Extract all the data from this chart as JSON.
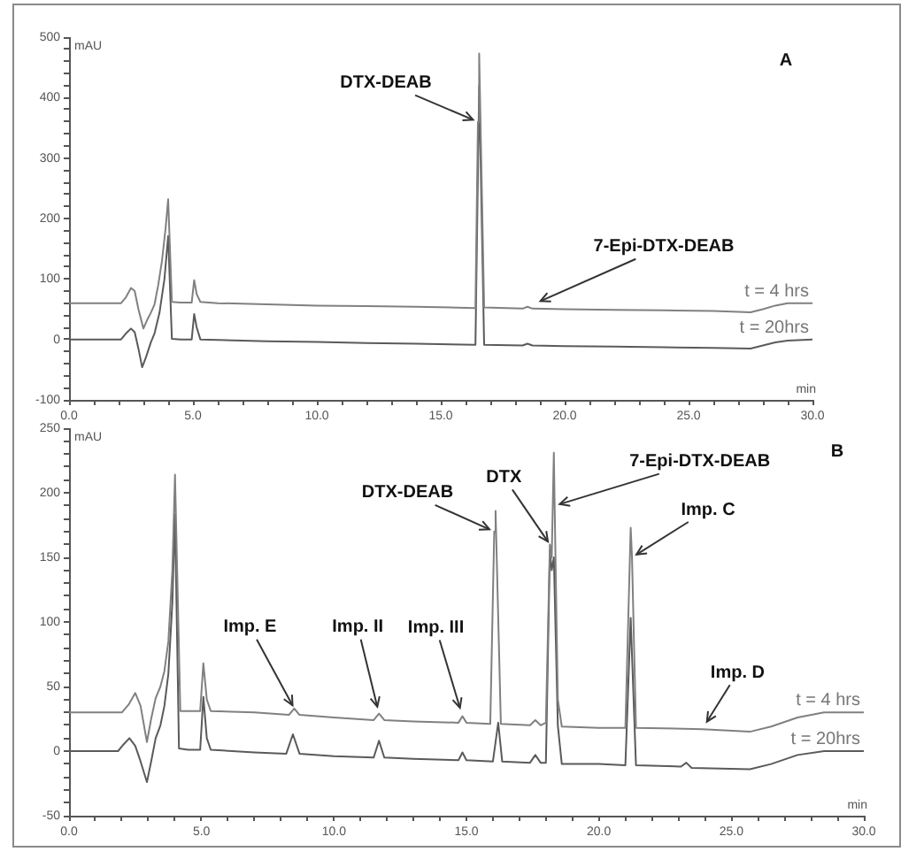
{
  "chart_data": [
    {
      "type": "line",
      "title": "A",
      "xlabel": "min",
      "ylabel": "mAU",
      "marker": "none",
      "line_style": "solid",
      "xlim": [
        0,
        30
      ],
      "ylim": [
        -100,
        500
      ],
      "xticks": [
        {
          "value": 0,
          "label": "0.0"
        },
        {
          "value": 1,
          "label": null
        },
        {
          "value": 2,
          "label": null
        },
        {
          "value": 3,
          "label": null
        },
        {
          "value": 4,
          "label": null
        },
        {
          "value": 5,
          "label": "5.0"
        },
        {
          "value": 6,
          "label": null
        },
        {
          "value": 7,
          "label": null
        },
        {
          "value": 8,
          "label": null
        },
        {
          "value": 9,
          "label": null
        },
        {
          "value": 10,
          "label": "10.0"
        },
        {
          "value": 11,
          "label": null
        },
        {
          "value": 12,
          "label": null
        },
        {
          "value": 13,
          "label": null
        },
        {
          "value": 14,
          "label": null
        },
        {
          "value": 15,
          "label": "15.0"
        },
        {
          "value": 16,
          "label": null
        },
        {
          "value": 17,
          "label": null
        },
        {
          "value": 18,
          "label": null
        },
        {
          "value": 19,
          "label": null
        },
        {
          "value": 20,
          "label": "20.0"
        },
        {
          "value": 21,
          "label": null
        },
        {
          "value": 22,
          "label": null
        },
        {
          "value": 23,
          "label": null
        },
        {
          "value": 24,
          "label": null
        },
        {
          "value": 25,
          "label": "25.0"
        },
        {
          "value": 26,
          "label": null
        },
        {
          "value": 27,
          "label": null
        },
        {
          "value": 28,
          "label": null
        },
        {
          "value": 29,
          "label": null
        },
        {
          "value": 30,
          "label": "30.0"
        }
      ],
      "yticks": [
        -100,
        {
          "value": -80,
          "label": null
        },
        {
          "value": -60,
          "label": null
        },
        {
          "value": -40,
          "label": null
        },
        {
          "value": -20,
          "label": null
        },
        0,
        {
          "value": 20,
          "label": null
        },
        {
          "value": 40,
          "label": null
        },
        {
          "value": 60,
          "label": null
        },
        {
          "value": 80,
          "label": null
        },
        100,
        {
          "value": 120,
          "label": null
        },
        {
          "value": 140,
          "label": null
        },
        {
          "value": 160,
          "label": null
        },
        {
          "value": 180,
          "label": null
        },
        200,
        {
          "value": 220,
          "label": null
        },
        {
          "value": 240,
          "label": null
        },
        {
          "value": 260,
          "label": null
        },
        {
          "value": 280,
          "label": null
        },
        300,
        {
          "value": 320,
          "label": null
        },
        {
          "value": 340,
          "label": null
        },
        {
          "value": 360,
          "label": null
        },
        {
          "value": 380,
          "label": null
        },
        400,
        {
          "value": 420,
          "label": null
        },
        {
          "value": 440,
          "label": null
        },
        {
          "value": 460,
          "label": null
        },
        {
          "value": 480,
          "label": null
        },
        500
      ],
      "series": [
        {
          "name": "t = 4 hrs",
          "color": "#808080",
          "x": [
            0,
            2.1,
            2.3,
            2.5,
            2.65,
            2.8,
            3.0,
            3.15,
            3.3,
            3.45,
            3.6,
            3.75,
            3.9,
            4.0,
            4.15,
            4.5,
            4.95,
            5.05,
            5.15,
            5.3,
            6,
            8,
            10,
            12,
            14,
            16.4,
            16.5,
            16.55,
            16.75,
            18.3,
            18.5,
            18.7,
            20,
            22,
            24,
            26,
            27.5,
            28,
            28.5,
            29,
            30
          ],
          "values": [
            60,
            60,
            70,
            85,
            80,
            50,
            18,
            32,
            44,
            58,
            90,
            130,
            185,
            232,
            62,
            61,
            61,
            98,
            75,
            62,
            60,
            58,
            56,
            55,
            54,
            52,
            360,
            473,
            53,
            51,
            54,
            51,
            50,
            49,
            48,
            47,
            45,
            50,
            56,
            60,
            60
          ]
        },
        {
          "name": "t = 20hrs",
          "color": "#5a5a5a",
          "x": [
            0,
            2.1,
            2.3,
            2.5,
            2.65,
            2.8,
            2.95,
            3.1,
            3.3,
            3.45,
            3.65,
            3.85,
            4.0,
            4.15,
            4.5,
            4.95,
            5.05,
            5.15,
            5.3,
            6,
            8,
            10,
            12,
            14,
            16.4,
            16.55,
            16.75,
            18.3,
            18.5,
            18.7,
            20,
            22,
            24,
            26,
            27.5,
            28,
            28.5,
            29,
            30
          ],
          "values": [
            0,
            0,
            10,
            18,
            12,
            -15,
            -46,
            -30,
            -5,
            10,
            44,
            100,
            171,
            1,
            0,
            0,
            42,
            20,
            0,
            -1,
            -3,
            -4,
            -6,
            -7,
            -9,
            420,
            -9,
            -10,
            -7,
            -10,
            -11,
            -12,
            -13,
            -14,
            -15,
            -10,
            -5,
            -2,
            0
          ]
        }
      ],
      "annotations": [
        {
          "text": "DTX-DEAB",
          "x": 16.5,
          "y": 360
        },
        {
          "text": "7-Epi-DTX-DEAB",
          "x": 18.5,
          "y": 54
        }
      ]
    },
    {
      "type": "line",
      "title": "B",
      "xlabel": "min",
      "ylabel": "mAU",
      "marker": "none",
      "line_style": "solid",
      "xlim": [
        0,
        30
      ],
      "ylim": [
        -50,
        250
      ],
      "xticks": [
        {
          "value": 0,
          "label": "0.0"
        },
        {
          "value": 1,
          "label": null
        },
        {
          "value": 2,
          "label": null
        },
        {
          "value": 3,
          "label": null
        },
        {
          "value": 4,
          "label": null
        },
        {
          "value": 5,
          "label": "5.0"
        },
        {
          "value": 6,
          "label": null
        },
        {
          "value": 7,
          "label": null
        },
        {
          "value": 8,
          "label": null
        },
        {
          "value": 9,
          "label": null
        },
        {
          "value": 10,
          "label": "10.0"
        },
        {
          "value": 11,
          "label": null
        },
        {
          "value": 12,
          "label": null
        },
        {
          "value": 13,
          "label": null
        },
        {
          "value": 14,
          "label": null
        },
        {
          "value": 15,
          "label": "15.0"
        },
        {
          "value": 16,
          "label": null
        },
        {
          "value": 17,
          "label": null
        },
        {
          "value": 18,
          "label": null
        },
        {
          "value": 19,
          "label": null
        },
        {
          "value": 20,
          "label": "20.0"
        },
        {
          "value": 21,
          "label": null
        },
        {
          "value": 22,
          "label": null
        },
        {
          "value": 23,
          "label": null
        },
        {
          "value": 24,
          "label": null
        },
        {
          "value": 25,
          "label": "25.0"
        },
        {
          "value": 26,
          "label": null
        },
        {
          "value": 27,
          "label": null
        },
        {
          "value": 28,
          "label": null
        },
        {
          "value": 29,
          "label": null
        },
        {
          "value": 30,
          "label": "30.0"
        }
      ],
      "yticks": [
        -50,
        {
          "value": -40,
          "label": null
        },
        {
          "value": -30,
          "label": null
        },
        {
          "value": -20,
          "label": null
        },
        {
          "value": -10,
          "label": null
        },
        0,
        {
          "value": 10,
          "label": null
        },
        {
          "value": 20,
          "label": null
        },
        {
          "value": 30,
          "label": null
        },
        {
          "value": 40,
          "label": null
        },
        50,
        {
          "value": 60,
          "label": null
        },
        {
          "value": 70,
          "label": null
        },
        {
          "value": 80,
          "label": null
        },
        {
          "value": 90,
          "label": null
        },
        100,
        {
          "value": 110,
          "label": null
        },
        {
          "value": 120,
          "label": null
        },
        {
          "value": 130,
          "label": null
        },
        {
          "value": 140,
          "label": null
        },
        150,
        {
          "value": 160,
          "label": null
        },
        {
          "value": 170,
          "label": null
        },
        {
          "value": 180,
          "label": null
        },
        {
          "value": 190,
          "label": null
        },
        200,
        {
          "value": 210,
          "label": null
        },
        {
          "value": 220,
          "label": null
        },
        {
          "value": 230,
          "label": null
        },
        {
          "value": 240,
          "label": null
        },
        250
      ],
      "series": [
        {
          "name": "t = 4 hrs",
          "color": "#808080",
          "x": [
            0,
            2.0,
            2.25,
            2.5,
            2.7,
            2.94,
            3.1,
            3.27,
            3.45,
            3.6,
            3.75,
            3.9,
            4.0,
            4.2,
            4.5,
            4.95,
            5.07,
            5.2,
            5.35,
            7,
            8.3,
            8.5,
            8.7,
            10,
            11.5,
            11.7,
            11.9,
            13,
            14.7,
            14.85,
            15,
            15.9,
            16.05,
            16.1,
            16.3,
            17.4,
            17.6,
            17.8,
            18.0,
            18.15,
            18.22,
            18.3,
            18.33,
            18.45,
            18.6,
            20,
            21.0,
            21.2,
            21.25,
            21.4,
            23.9,
            25.7,
            26.5,
            27.5,
            28.5,
            30
          ],
          "values": [
            30,
            30,
            36,
            45,
            35,
            7,
            25,
            41,
            50,
            62,
            85,
            140,
            214,
            31,
            31,
            31,
            68,
            40,
            31,
            30,
            28,
            33,
            28,
            26,
            24,
            29,
            24,
            23,
            22,
            27,
            22,
            21,
            170,
            186,
            21,
            20,
            24,
            20,
            22,
            160,
            150,
            231,
            190,
            40,
            19,
            18,
            18,
            173,
            150,
            18,
            17,
            15,
            19,
            26,
            30,
            30
          ]
        },
        {
          "name": "t = 20hrs",
          "color": "#5a5a5a",
          "x": [
            0,
            1.85,
            2.05,
            2.28,
            2.5,
            2.7,
            2.94,
            3.1,
            3.27,
            3.45,
            3.6,
            3.75,
            3.9,
            4.0,
            4.15,
            4.5,
            4.95,
            5.07,
            5.2,
            5.35,
            7,
            8.2,
            8.45,
            8.7,
            10,
            11.5,
            11.7,
            11.9,
            13,
            14.7,
            14.85,
            15,
            16.0,
            16.2,
            16.35,
            17.4,
            17.6,
            17.8,
            18.0,
            18.15,
            18.22,
            18.3,
            18.45,
            18.6,
            20,
            21.0,
            21.2,
            21.4,
            23.1,
            23.3,
            23.5,
            25.7,
            26.5,
            27.5,
            28.5,
            30
          ],
          "values": [
            0,
            0,
            5,
            10,
            4,
            -8,
            -24,
            -8,
            10,
            20,
            35,
            60,
            115,
            183,
            2,
            1,
            1,
            42,
            10,
            1,
            -1,
            -2,
            13,
            -2,
            -4,
            -5,
            8,
            -5,
            -6,
            -7,
            -1,
            -7,
            -8,
            22,
            -8,
            -9,
            -3,
            -9,
            -9,
            155,
            140,
            150,
            20,
            -10,
            -10,
            -11,
            103,
            -11,
            -12,
            -9,
            -13,
            -14,
            -10,
            -3,
            0,
            0
          ]
        }
      ],
      "annotations": [
        {
          "text": "DTX-DEAB",
          "x": 16.05,
          "y": 170
        },
        {
          "text": "DTX",
          "x": 18.15,
          "y": 160
        },
        {
          "text": "7-Epi-DTX-DEAB",
          "x": 18.33,
          "y": 190
        },
        {
          "text": "Imp. C",
          "x": 21.25,
          "y": 150
        },
        {
          "text": "Imp. E",
          "x": 8.5,
          "y": 33
        },
        {
          "text": "Imp. II",
          "x": 11.7,
          "y": 29
        },
        {
          "text": "Imp. III",
          "x": 14.85,
          "y": 27
        },
        {
          "text": "Imp. D",
          "x": 23.9,
          "y": 17
        }
      ]
    }
  ]
}
